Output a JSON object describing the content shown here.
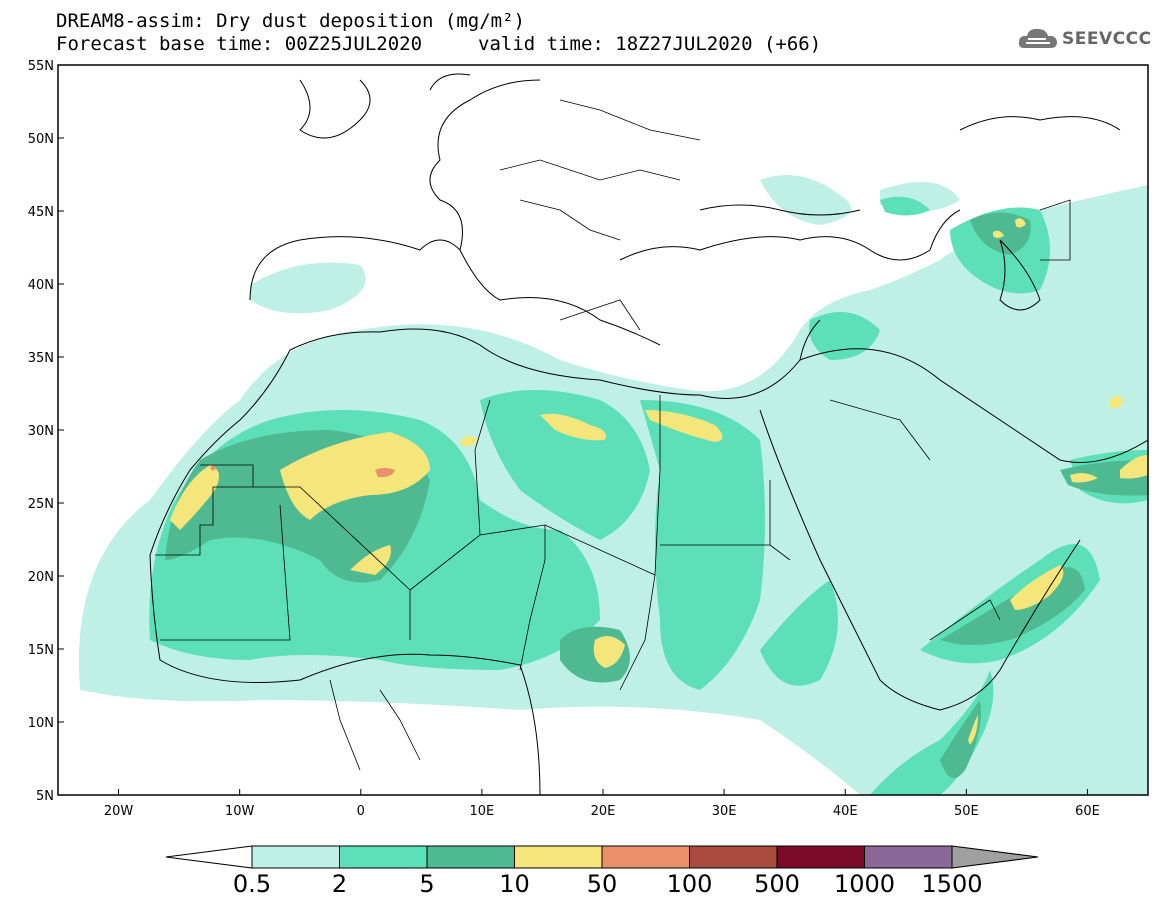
{
  "title": {
    "line1": "DREAM8-assim: Dry dust deposition (mg/m²)",
    "line2_left": "Forecast base time: 00Z25JUL2020",
    "line2_right": "valid time: 18Z27JUL2020 (+66)"
  },
  "logo": {
    "text": "SEEVCCC",
    "icon": "cloud-logo-icon"
  },
  "map": {
    "lon_range": [
      -25,
      65
    ],
    "lat_range": [
      5,
      55
    ],
    "lat_ticks": [
      {
        "value": 55,
        "label": "55N"
      },
      {
        "value": 50,
        "label": "50N"
      },
      {
        "value": 45,
        "label": "45N"
      },
      {
        "value": 40,
        "label": "40N"
      },
      {
        "value": 35,
        "label": "35N"
      },
      {
        "value": 30,
        "label": "30N"
      },
      {
        "value": 25,
        "label": "25N"
      },
      {
        "value": 20,
        "label": "20N"
      },
      {
        "value": 15,
        "label": "15N"
      },
      {
        "value": 10,
        "label": "10N"
      },
      {
        "value": 5,
        "label": "5N"
      }
    ],
    "lon_ticks": [
      {
        "value": -20,
        "label": "20W"
      },
      {
        "value": -10,
        "label": "10W"
      },
      {
        "value": 0,
        "label": "0"
      },
      {
        "value": 10,
        "label": "10E"
      },
      {
        "value": 20,
        "label": "20E"
      },
      {
        "value": 30,
        "label": "30E"
      },
      {
        "value": 40,
        "label": "40E"
      },
      {
        "value": 50,
        "label": "50E"
      },
      {
        "value": 60,
        "label": "60E"
      }
    ]
  },
  "colorbar": {
    "levels": [
      "0.5",
      "2",
      "5",
      "10",
      "50",
      "100",
      "500",
      "1000",
      "1500"
    ],
    "colors": [
      "#bff0e6",
      "#5de0b8",
      "#4fb991",
      "#f4e67a",
      "#e98f6a",
      "#a84a3c",
      "#7b0a28",
      "#8a6898"
    ],
    "low_color": "#ffffff",
    "high_color": "#a0a0a0"
  }
}
